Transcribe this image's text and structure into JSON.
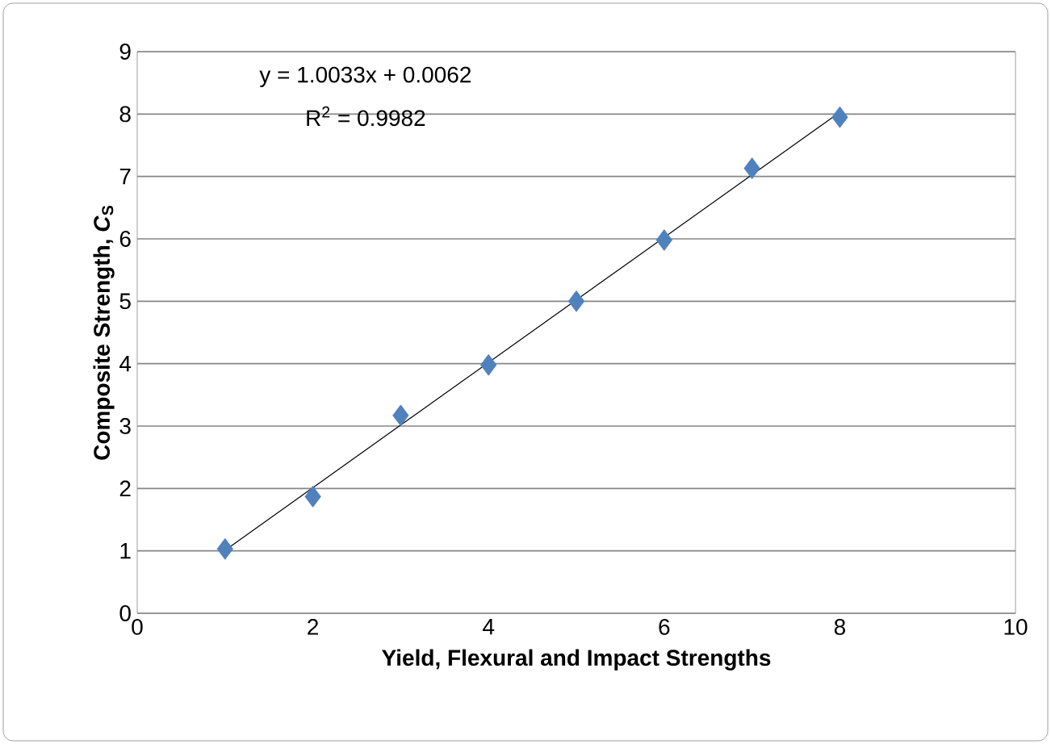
{
  "chart_data": {
    "type": "scatter",
    "xlabel": "Yield, Flexural and Impact Strengths",
    "ylabel": "Composite Strength, *C*$_{S}$",
    "annotations": [
      "y = 1.0033x + 0.0062",
      "R$^{2}$ = 0.9982"
    ],
    "series": [
      {
        "color": "#4f81bd",
        "marker": "diamond",
        "x": [
          1,
          2,
          3,
          4,
          5,
          6,
          7,
          8
        ],
        "values": [
          1.03,
          1.87,
          3.17,
          3.98,
          5.0,
          5.98,
          7.13,
          7.95
        ]
      },
      {
        "type": "line",
        "color": "#000000",
        "marker": "none",
        "x": [
          1,
          8
        ],
        "values": [
          1.01,
          8.03
        ]
      }
    ],
    "xlim": [
      0,
      10
    ],
    "ylim": [
      0,
      9
    ],
    "xticks": [
      0,
      2,
      4,
      6,
      8,
      10
    ],
    "yticks": [
      0,
      1,
      2,
      3,
      4,
      5,
      6,
      7,
      8,
      9
    ],
    "grid": "y"
  }
}
